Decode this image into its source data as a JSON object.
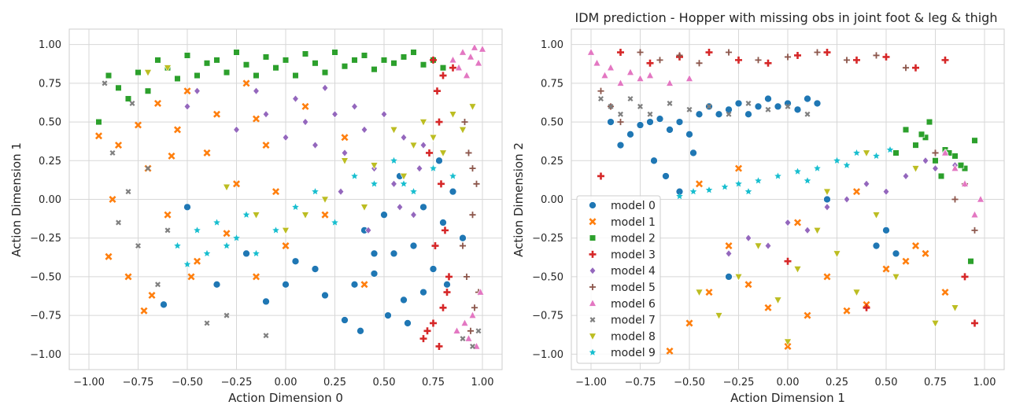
{
  "colors": {
    "model 0": "#1f77b4",
    "model 1": "#ff7f0e",
    "model 2": "#2ca02c",
    "model 3": "#d62728",
    "model 4": "#9467bd",
    "model 5": "#8c564b",
    "model 6": "#e377c2",
    "model 7": "#7f7f7f",
    "model 8": "#bcbd22",
    "model 9": "#17becf"
  },
  "markers": {
    "model 0": "circle",
    "model 1": "x",
    "model 2": "square",
    "model 3": "plus",
    "model 4": "diamond",
    "model 5": "thin-plus",
    "model 6": "triangle-up",
    "model 7": "small-x",
    "model 8": "triangle-down",
    "model 9": "star"
  },
  "chart_data": [
    {
      "type": "scatter",
      "title": "",
      "xlabel": "Action Dimension 0",
      "ylabel": "Action Dimension 1",
      "xlim": [
        -1.1,
        1.1
      ],
      "ylim": [
        -1.1,
        1.1
      ],
      "xticks": [
        -1.0,
        -0.75,
        -0.5,
        -0.25,
        0.0,
        0.25,
        0.5,
        0.75,
        1.0
      ],
      "yticks": [
        -1.0,
        -0.75,
        -0.5,
        -0.25,
        0.0,
        0.25,
        0.5,
        0.75,
        1.0
      ],
      "xtick_labels": [
        "−1.00",
        "−0.75",
        "−0.50",
        "−0.25",
        "0.00",
        "0.25",
        "0.50",
        "0.75",
        "1.00"
      ],
      "ytick_labels": [
        "−1.00",
        "−0.75",
        "−0.50",
        "−0.25",
        "0.00",
        "0.25",
        "0.50",
        "0.75",
        "1.00"
      ],
      "grid": true,
      "legend": "none",
      "series": [
        {
          "name": "model 0",
          "x": [
            -0.62,
            -0.5,
            -0.35,
            -0.2,
            -0.1,
            0.0,
            0.05,
            0.15,
            0.2,
            0.3,
            0.35,
            0.4,
            0.45,
            0.5,
            0.55,
            0.6,
            0.65,
            0.7,
            0.75,
            0.8,
            0.85,
            0.9,
            0.52,
            0.62,
            0.7,
            0.45,
            0.38,
            0.58,
            0.78,
            0.82
          ],
          "y": [
            -0.68,
            -0.05,
            -0.55,
            -0.35,
            -0.66,
            -0.55,
            -0.4,
            -0.45,
            -0.62,
            -0.78,
            -0.55,
            -0.2,
            -0.48,
            -0.1,
            -0.35,
            -0.65,
            -0.3,
            -0.05,
            -0.45,
            -0.15,
            0.05,
            -0.25,
            -0.75,
            -0.8,
            -0.6,
            -0.35,
            -0.85,
            0.15,
            0.25,
            -0.55
          ]
        },
        {
          "name": "model 1",
          "x": [
            -0.95,
            -0.9,
            -0.85,
            -0.8,
            -0.75,
            -0.72,
            -0.7,
            -0.65,
            -0.6,
            -0.55,
            -0.5,
            -0.45,
            -0.4,
            -0.35,
            -0.3,
            -0.25,
            -0.2,
            -0.15,
            -0.1,
            -0.05,
            0.0,
            0.1,
            0.2,
            0.3,
            0.4,
            -0.88,
            -0.68,
            -0.58,
            -0.48,
            -0.15
          ],
          "y": [
            0.41,
            -0.37,
            0.35,
            -0.5,
            0.48,
            -0.72,
            0.2,
            0.62,
            -0.1,
            0.45,
            0.7,
            -0.4,
            0.3,
            0.55,
            -0.22,
            0.1,
            0.75,
            -0.5,
            0.35,
            0.05,
            -0.3,
            0.6,
            -0.1,
            0.4,
            -0.55,
            0.0,
            -0.62,
            0.28,
            -0.5,
            0.52
          ]
        },
        {
          "name": "model 2",
          "x": [
            -0.95,
            -0.9,
            -0.85,
            -0.8,
            -0.75,
            -0.7,
            -0.65,
            -0.6,
            -0.55,
            -0.5,
            -0.45,
            -0.4,
            -0.35,
            -0.3,
            -0.25,
            -0.2,
            -0.15,
            -0.1,
            -0.05,
            0.0,
            0.05,
            0.1,
            0.15,
            0.2,
            0.25,
            0.3,
            0.35,
            0.4,
            0.45,
            0.5,
            0.55,
            0.6,
            0.65,
            0.7,
            0.75,
            0.8
          ],
          "y": [
            0.5,
            0.8,
            0.72,
            0.65,
            0.82,
            0.7,
            0.9,
            0.85,
            0.78,
            0.93,
            0.8,
            0.88,
            0.9,
            0.82,
            0.95,
            0.87,
            0.8,
            0.92,
            0.85,
            0.9,
            0.8,
            0.94,
            0.88,
            0.82,
            0.95,
            0.86,
            0.9,
            0.93,
            0.84,
            0.9,
            0.88,
            0.92,
            0.95,
            0.87,
            0.9,
            0.85
          ]
        },
        {
          "name": "model 3",
          "x": [
            0.7,
            0.72,
            0.75,
            0.78,
            0.8,
            0.82,
            0.75,
            0.8,
            0.78,
            0.73,
            0.85,
            0.76,
            0.79,
            0.83,
            0.77,
            0.81
          ],
          "y": [
            -0.9,
            -0.85,
            -0.8,
            -0.95,
            -0.7,
            -0.6,
            0.9,
            0.8,
            0.5,
            0.3,
            0.85,
            -0.3,
            0.1,
            -0.5,
            0.7,
            -0.2
          ]
        },
        {
          "name": "model 4",
          "x": [
            -0.25,
            -0.15,
            -0.1,
            0.0,
            0.05,
            0.1,
            0.15,
            0.2,
            0.25,
            0.3,
            0.35,
            0.4,
            0.45,
            0.5,
            0.55,
            0.6,
            0.65,
            0.7,
            -0.5,
            -0.45,
            0.28,
            0.42,
            0.58,
            0.68
          ],
          "y": [
            0.45,
            0.7,
            0.55,
            0.4,
            0.65,
            0.5,
            0.35,
            0.72,
            0.55,
            0.3,
            0.6,
            0.45,
            0.2,
            0.55,
            0.1,
            0.4,
            -0.1,
            0.35,
            0.6,
            0.7,
            0.05,
            -0.2,
            -0.05,
            0.2
          ]
        },
        {
          "name": "model 5",
          "x": [
            0.9,
            0.92,
            0.95,
            0.97,
            0.93,
            0.96,
            0.91,
            0.94,
            0.98,
            0.95
          ],
          "y": [
            -0.3,
            -0.5,
            -0.1,
            0.1,
            0.3,
            -0.7,
            0.5,
            -0.85,
            -0.6,
            0.2
          ]
        },
        {
          "name": "model 6",
          "x": [
            0.85,
            0.88,
            0.9,
            0.92,
            0.94,
            0.96,
            0.98,
            1.0,
            0.87,
            0.93,
            0.95,
            0.97,
            0.99,
            0.91
          ],
          "y": [
            0.9,
            0.85,
            0.95,
            0.8,
            0.92,
            0.98,
            0.88,
            0.97,
            -0.85,
            -0.9,
            -0.75,
            -0.95,
            -0.6,
            -0.8
          ]
        },
        {
          "name": "model 7",
          "x": [
            -0.92,
            -0.88,
            -0.8,
            -0.75,
            -0.7,
            -0.65,
            -0.6,
            -0.4,
            -0.3,
            -0.1,
            0.9,
            0.95,
            0.98,
            -0.85,
            -0.78
          ],
          "y": [
            0.75,
            0.3,
            0.05,
            -0.3,
            0.2,
            -0.55,
            -0.2,
            -0.8,
            -0.75,
            -0.88,
            -0.9,
            -0.95,
            -0.85,
            -0.15,
            0.62
          ]
        },
        {
          "name": "model 8",
          "x": [
            -0.7,
            -0.6,
            -0.3,
            -0.15,
            0.0,
            0.2,
            0.3,
            0.45,
            0.55,
            0.65,
            0.7,
            0.75,
            0.8,
            0.85,
            0.9,
            0.95,
            0.6,
            0.4,
            0.1
          ],
          "y": [
            0.82,
            0.85,
            0.08,
            -0.1,
            -0.2,
            0.0,
            0.25,
            0.22,
            0.45,
            0.35,
            0.5,
            0.4,
            0.3,
            0.55,
            0.45,
            0.6,
            0.15,
            -0.05,
            -0.1
          ]
        },
        {
          "name": "model 9",
          "x": [
            -0.55,
            -0.5,
            -0.45,
            -0.4,
            -0.35,
            -0.3,
            -0.25,
            -0.2,
            -0.15,
            -0.05,
            0.05,
            0.15,
            0.25,
            0.35,
            0.45,
            0.55,
            0.65,
            0.75,
            0.85,
            0.6
          ],
          "y": [
            -0.3,
            -0.42,
            -0.2,
            -0.35,
            -0.15,
            -0.3,
            -0.25,
            -0.1,
            -0.35,
            -0.2,
            -0.05,
            0.05,
            -0.15,
            0.15,
            0.1,
            0.25,
            0.05,
            0.2,
            0.15,
            0.1
          ]
        }
      ]
    },
    {
      "type": "scatter",
      "title": "IDM prediction - Hopper with missing obs in joint foot & leg & thigh",
      "xlabel": "Action Dimension 1",
      "ylabel": "Action Dimension 2",
      "xlim": [
        -1.1,
        1.1
      ],
      "ylim": [
        -1.1,
        1.1
      ],
      "xticks": [
        -1.0,
        -0.75,
        -0.5,
        -0.25,
        0.0,
        0.25,
        0.5,
        0.75,
        1.0
      ],
      "yticks": [
        -1.0,
        -0.75,
        -0.5,
        -0.25,
        0.0,
        0.25,
        0.5,
        0.75,
        1.0
      ],
      "xtick_labels": [
        "−1.00",
        "−0.75",
        "−0.50",
        "−0.25",
        "0.00",
        "0.25",
        "0.50",
        "0.75",
        "1.00"
      ],
      "ytick_labels": [
        "−1.00",
        "−0.75",
        "−0.50",
        "−0.25",
        "0.00",
        "0.25",
        "0.50",
        "0.75",
        "1.00"
      ],
      "grid": true,
      "legend": "lower-left",
      "series": [
        {
          "name": "model 0",
          "x": [
            -0.9,
            -0.85,
            -0.8,
            -0.75,
            -0.7,
            -0.65,
            -0.6,
            -0.55,
            -0.5,
            -0.45,
            -0.4,
            -0.35,
            -0.3,
            -0.25,
            -0.2,
            -0.15,
            -0.1,
            -0.05,
            0.0,
            0.05,
            0.1,
            0.15,
            -0.68,
            -0.62,
            -0.55,
            -0.48,
            0.45,
            0.5,
            0.55,
            -0.3,
            0.2
          ],
          "y": [
            0.5,
            0.35,
            0.42,
            0.48,
            0.5,
            0.52,
            0.45,
            0.5,
            0.42,
            0.55,
            0.6,
            0.55,
            0.58,
            0.62,
            0.55,
            0.6,
            0.65,
            0.6,
            0.62,
            0.58,
            0.65,
            0.62,
            0.25,
            0.15,
            0.05,
            0.3,
            -0.3,
            -0.2,
            -0.35,
            -0.5,
            0.0
          ]
        },
        {
          "name": "model 1",
          "x": [
            -0.6,
            -0.5,
            -0.4,
            -0.3,
            -0.2,
            -0.1,
            0.0,
            0.1,
            0.2,
            0.3,
            0.4,
            0.5,
            0.6,
            0.7,
            0.8,
            -0.45,
            -0.25,
            0.05,
            0.35,
            0.65
          ],
          "y": [
            -0.98,
            -0.8,
            -0.6,
            -0.3,
            -0.55,
            -0.7,
            -0.95,
            -0.75,
            -0.5,
            -0.72,
            -0.68,
            -0.45,
            -0.4,
            -0.35,
            -0.6,
            0.1,
            0.2,
            -0.15,
            0.05,
            -0.3
          ]
        },
        {
          "name": "model 2",
          "x": [
            0.55,
            0.6,
            0.65,
            0.7,
            0.75,
            0.8,
            0.85,
            0.9,
            0.95,
            0.72,
            0.78,
            0.82,
            0.88,
            0.93,
            0.68
          ],
          "y": [
            0.3,
            0.45,
            0.35,
            0.4,
            0.25,
            0.32,
            0.28,
            0.2,
            0.38,
            0.5,
            0.15,
            0.3,
            0.22,
            -0.4,
            0.42
          ]
        },
        {
          "name": "model 3",
          "x": [
            -0.85,
            -0.7,
            -0.55,
            -0.4,
            -0.25,
            -0.1,
            0.05,
            0.2,
            0.35,
            0.5,
            0.65,
            0.8,
            0.95,
            -0.95,
            0.0,
            0.4,
            0.9
          ],
          "y": [
            0.95,
            0.88,
            0.92,
            0.95,
            0.9,
            0.88,
            0.93,
            0.95,
            0.9,
            0.92,
            0.85,
            0.9,
            -0.8,
            0.15,
            -0.4,
            -0.7,
            -0.5
          ]
        },
        {
          "name": "model 4",
          "x": [
            0.2,
            0.3,
            0.4,
            0.5,
            0.6,
            0.7,
            0.75,
            0.8,
            0.85,
            -0.2,
            -0.1,
            0.0,
            0.1,
            -0.3
          ],
          "y": [
            -0.05,
            0.0,
            0.1,
            0.05,
            0.15,
            0.25,
            0.2,
            0.3,
            0.22,
            -0.25,
            -0.3,
            -0.15,
            -0.2,
            -0.35
          ]
        },
        {
          "name": "model 5",
          "x": [
            -0.95,
            -0.9,
            -0.85,
            -0.75,
            -0.65,
            -0.55,
            -0.45,
            -0.3,
            -0.15,
            0.0,
            0.15,
            0.3,
            0.45,
            0.6,
            0.75,
            0.9,
            0.95,
            0.85
          ],
          "y": [
            0.7,
            0.6,
            0.5,
            0.95,
            0.9,
            0.93,
            0.88,
            0.95,
            0.9,
            0.92,
            0.95,
            0.9,
            0.93,
            0.85,
            0.3,
            0.1,
            -0.2,
            0.0
          ]
        },
        {
          "name": "model 6",
          "x": [
            -1.0,
            -0.97,
            -0.93,
            -0.9,
            -0.85,
            -0.8,
            -0.75,
            -0.7,
            -0.6,
            -0.5,
            0.8,
            0.85,
            0.9,
            0.95,
            0.98
          ],
          "y": [
            0.95,
            0.88,
            0.8,
            0.85,
            0.75,
            0.82,
            0.78,
            0.8,
            0.75,
            0.78,
            0.3,
            0.2,
            0.1,
            -0.1,
            0.0
          ]
        },
        {
          "name": "model 7",
          "x": [
            -0.95,
            -0.9,
            -0.85,
            -0.8,
            -0.75,
            -0.7,
            -0.6,
            -0.5,
            -0.4,
            -0.3,
            -0.2,
            -0.1,
            0.0,
            0.1
          ],
          "y": [
            0.65,
            0.6,
            0.55,
            0.65,
            0.6,
            0.55,
            0.62,
            0.58,
            0.6,
            0.55,
            0.62,
            0.58,
            0.6,
            0.55
          ]
        },
        {
          "name": "model 8",
          "x": [
            -0.45,
            -0.35,
            -0.25,
            -0.15,
            -0.05,
            0.05,
            0.15,
            0.25,
            0.35,
            0.45,
            0.55,
            0.65,
            0.75,
            0.85,
            0.0,
            0.2,
            0.4
          ],
          "y": [
            -0.6,
            -0.75,
            -0.5,
            -0.3,
            -0.65,
            -0.45,
            -0.2,
            -0.35,
            -0.6,
            -0.1,
            -0.5,
            0.2,
            -0.8,
            -0.7,
            -0.92,
            0.05,
            0.3
          ]
        },
        {
          "name": "model 9",
          "x": [
            -0.55,
            -0.48,
            -0.4,
            -0.32,
            -0.25,
            -0.15,
            -0.05,
            0.05,
            0.15,
            0.25,
            0.35,
            0.45,
            0.52,
            -0.2,
            0.1,
            0.3
          ],
          "y": [
            0.02,
            0.05,
            0.06,
            0.08,
            0.1,
            0.12,
            0.15,
            0.18,
            0.2,
            0.25,
            0.3,
            0.28,
            0.32,
            0.05,
            0.12,
            0.22
          ]
        }
      ]
    }
  ]
}
